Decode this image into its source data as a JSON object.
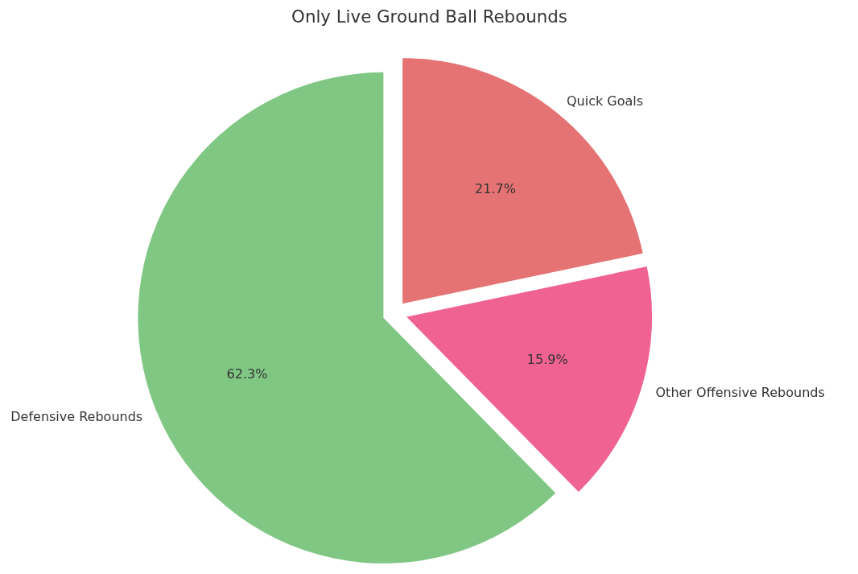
{
  "chart_data": {
    "type": "pie",
    "title": "Only Live Ground Ball Rebounds",
    "categories": [
      "Quick Goals",
      "Other Offensive Rebounds",
      "Defensive Rebounds"
    ],
    "values": [
      21.7,
      15.9,
      62.3
    ],
    "colors": [
      "#e57373",
      "#f06292",
      "#81c784"
    ],
    "value_labels": [
      "21.7%",
      "15.9%",
      "62.3%"
    ]
  }
}
